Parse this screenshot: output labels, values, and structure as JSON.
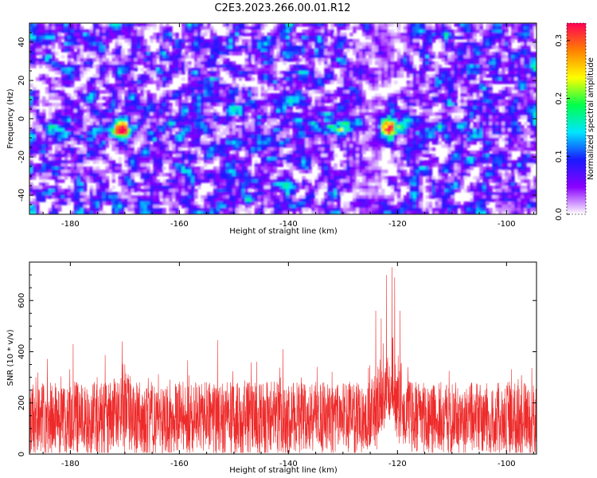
{
  "title": "C2E3.2023.266.00.01.R12",
  "chart_data": [
    {
      "type": "heatmap",
      "xlabel": "Height of straight line (km)",
      "ylabel": "Frequency (Hz)",
      "xlim": [
        -187.5,
        -94.5
      ],
      "ylim": [
        -50,
        50
      ],
      "xticks": [
        -180,
        -160,
        -140,
        -120,
        -100
      ],
      "yticks": [
        -40,
        -20,
        0,
        20,
        40
      ],
      "colorbar": {
        "label": "Normalized spectral amplitude",
        "range": [
          0,
          0.33
        ],
        "ticks": [
          0.0,
          0.1,
          0.2,
          0.3
        ],
        "colormap": [
          "#ffffff",
          "#8a00ff",
          "#1a1aff",
          "#00e6ff",
          "#00ff4c",
          "#ffff00",
          "#ff8000",
          "#ff0055"
        ]
      },
      "hotspots": [
        {
          "x": -170.5,
          "y": -6,
          "amplitude": 0.3
        },
        {
          "x": -121.5,
          "y": -4,
          "amplitude": 0.32
        },
        {
          "x": -130.5,
          "y": -4,
          "amplitude": 0.14
        },
        {
          "x": -182,
          "y": -6,
          "amplitude": 0.12
        }
      ]
    },
    {
      "type": "line",
      "xlabel": "Height of straight line (km)",
      "ylabel": "SNR (10 * v/v)",
      "xlim": [
        -187.5,
        -94.5
      ],
      "ylim": [
        0,
        750
      ],
      "xticks": [
        -180,
        -160,
        -140,
        -120,
        -100
      ],
      "yticks": [
        0,
        200,
        400,
        600
      ],
      "color": "#ee2a2a",
      "noise_floor": {
        "low": 40,
        "mean": 140,
        "high": 260
      },
      "peaks": [
        {
          "x": -121.0,
          "y": 730
        },
        {
          "x": -122.0,
          "y": 700
        },
        {
          "x": -120.5,
          "y": 690
        },
        {
          "x": -123.0,
          "y": 530
        },
        {
          "x": -124.0,
          "y": 560
        },
        {
          "x": -119.5,
          "y": 560
        },
        {
          "x": -170.5,
          "y": 440
        },
        {
          "x": -179.5,
          "y": 430
        },
        {
          "x": -153.0,
          "y": 445
        },
        {
          "x": -141.0,
          "y": 410
        }
      ]
    }
  ]
}
